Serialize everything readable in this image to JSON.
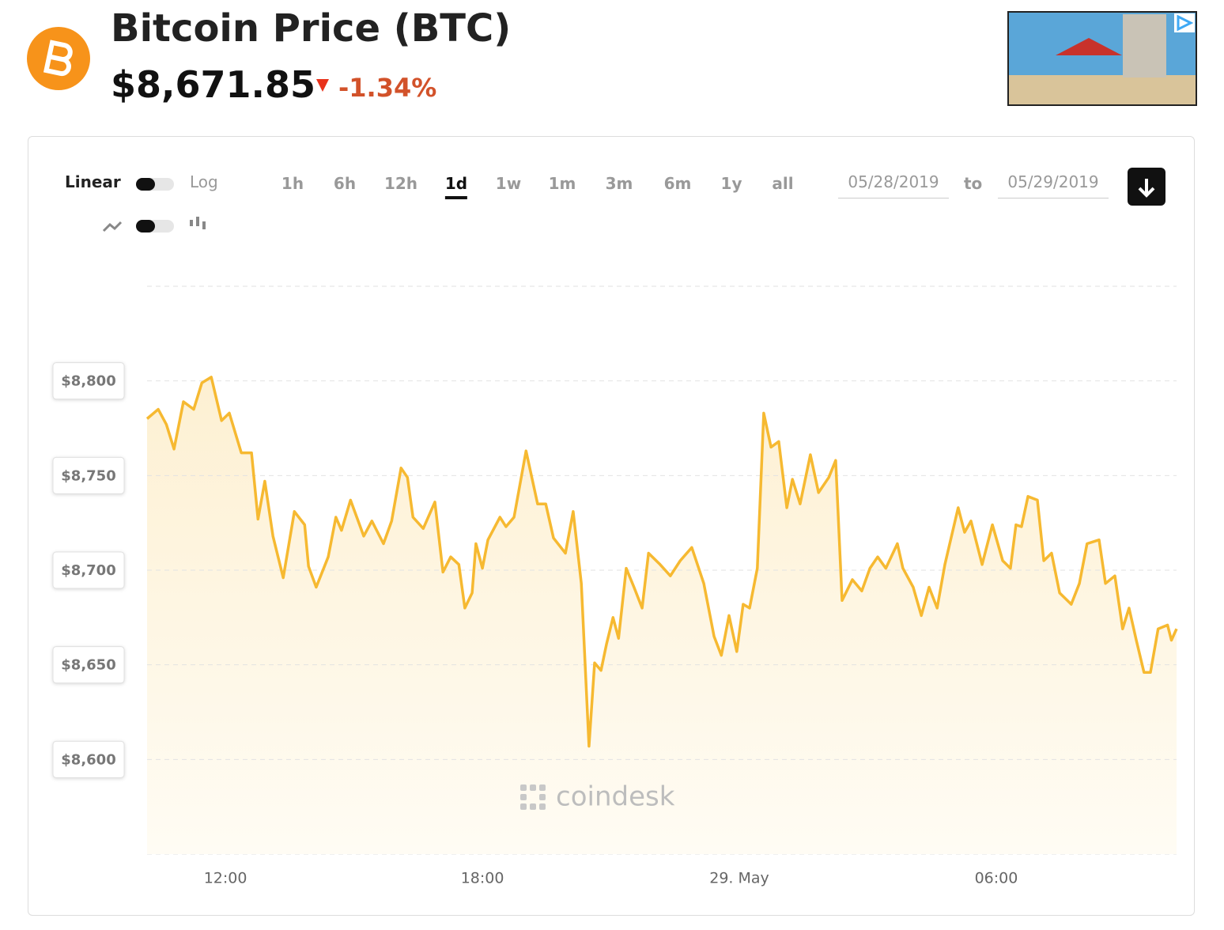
{
  "header": {
    "title": "Bitcoin Price",
    "symbol": "(BTC)",
    "price": "$8,671.85",
    "change": "-1.34%"
  },
  "controls": {
    "scale_linear": "Linear",
    "scale_log": "Log",
    "ranges": [
      "1h",
      "6h",
      "12h",
      "1d",
      "1w",
      "1m",
      "3m",
      "6m",
      "1y",
      "all"
    ],
    "active_range": "1d",
    "date_from": "05/28/2019",
    "date_separator": "to",
    "date_to": "05/29/2019"
  },
  "chart_data": {
    "type": "line",
    "watermark": "coindesk",
    "x": [
      10.17,
      10.43,
      10.62,
      10.8,
      11.02,
      11.26,
      11.45,
      11.67,
      11.91,
      12.09,
      12.37,
      12.61,
      12.76,
      12.92,
      13.11,
      13.35,
      13.61,
      13.85,
      13.94,
      14.12,
      14.4,
      14.58,
      14.71,
      14.92,
      15.23,
      15.42,
      15.69,
      15.88,
      16.1,
      16.25,
      16.38,
      16.62,
      16.89,
      17.08,
      17.26,
      17.45,
      17.59,
      17.76,
      17.85,
      18.0,
      18.13,
      18.41,
      18.55,
      18.74,
      19.02,
      19.29,
      19.48,
      19.66,
      19.94,
      20.12,
      20.31,
      20.49,
      20.62,
      20.77,
      20.9,
      21.05,
      21.18,
      21.36,
      21.54,
      21.73,
      21.88,
      22.15,
      22.39,
      22.62,
      22.89,
      23.17,
      23.41,
      23.58,
      23.76,
      23.94,
      24.09,
      24.24,
      24.42,
      24.57,
      24.74,
      24.92,
      25.11,
      25.24,
      25.42,
      25.66,
      25.85,
      26.09,
      26.25,
      26.4,
      26.64,
      26.86,
      27.05,
      27.23,
      27.42,
      27.69,
      27.82,
      28.06,
      28.25,
      28.43,
      28.62,
      28.8,
      29.11,
      29.26,
      29.41,
      29.67,
      29.91,
      30.15,
      30.33,
      30.46,
      30.59,
      30.74,
      30.96,
      31.11,
      31.29,
      31.48,
      31.75,
      31.94,
      32.12,
      32.4,
      32.55,
      32.77,
      32.95,
      33.1,
      33.27,
      33.45,
      33.6,
      33.78,
      34.0,
      34.09,
      34.21
    ],
    "series": [
      {
        "name": "BTC",
        "color": "#f6b931",
        "values": [
          8780,
          8785,
          8777,
          8764,
          8789,
          8785,
          8799,
          8802,
          8779,
          8783,
          8762,
          8762,
          8727,
          8747,
          8718,
          8696,
          8731,
          8724,
          8702,
          8691,
          8707,
          8728,
          8721,
          8737,
          8718,
          8726,
          8714,
          8726,
          8754,
          8749,
          8728,
          8722,
          8736,
          8699,
          8707,
          8703,
          8680,
          8688,
          8714,
          8701,
          8716,
          8728,
          8723,
          8728,
          8763,
          8735,
          8735,
          8717,
          8709,
          8731,
          8693,
          8607,
          8651,
          8647,
          8661,
          8675,
          8664,
          8701,
          8691,
          8680,
          8709,
          8703,
          8697,
          8705,
          8712,
          8693,
          8665,
          8655,
          8676,
          8657,
          8682,
          8680,
          8701,
          8783,
          8765,
          8768,
          8733,
          8748,
          8735,
          8761,
          8741,
          8749,
          8758,
          8684,
          8695,
          8689,
          8701,
          8707,
          8701,
          8714,
          8701,
          8691,
          8676,
          8691,
          8680,
          8703,
          8733,
          8720,
          8726,
          8703,
          8724,
          8705,
          8701,
          8724,
          8723,
          8739,
          8737,
          8705,
          8709,
          8688,
          8682,
          8693,
          8714,
          8716,
          8693,
          8697,
          8669,
          8680,
          8663,
          8646,
          8646,
          8669,
          8671,
          8663,
          8669
        ]
      }
    ],
    "xlim": [
      10.17,
      34.21
    ],
    "xticks": [
      {
        "value": 12,
        "label": "12:00"
      },
      {
        "value": 18,
        "label": "18:00"
      },
      {
        "value": 24,
        "label": "29. May"
      },
      {
        "value": 30,
        "label": "06:00"
      }
    ],
    "ylim": [
      8550,
      8850
    ],
    "yticks": [
      {
        "value": 8600,
        "label": "$8,600"
      },
      {
        "value": 8650,
        "label": "$8,650"
      },
      {
        "value": 8700,
        "label": "$8,700"
      },
      {
        "value": 8750,
        "label": "$8,750"
      },
      {
        "value": 8800,
        "label": "$8,800"
      }
    ],
    "grid": true
  }
}
